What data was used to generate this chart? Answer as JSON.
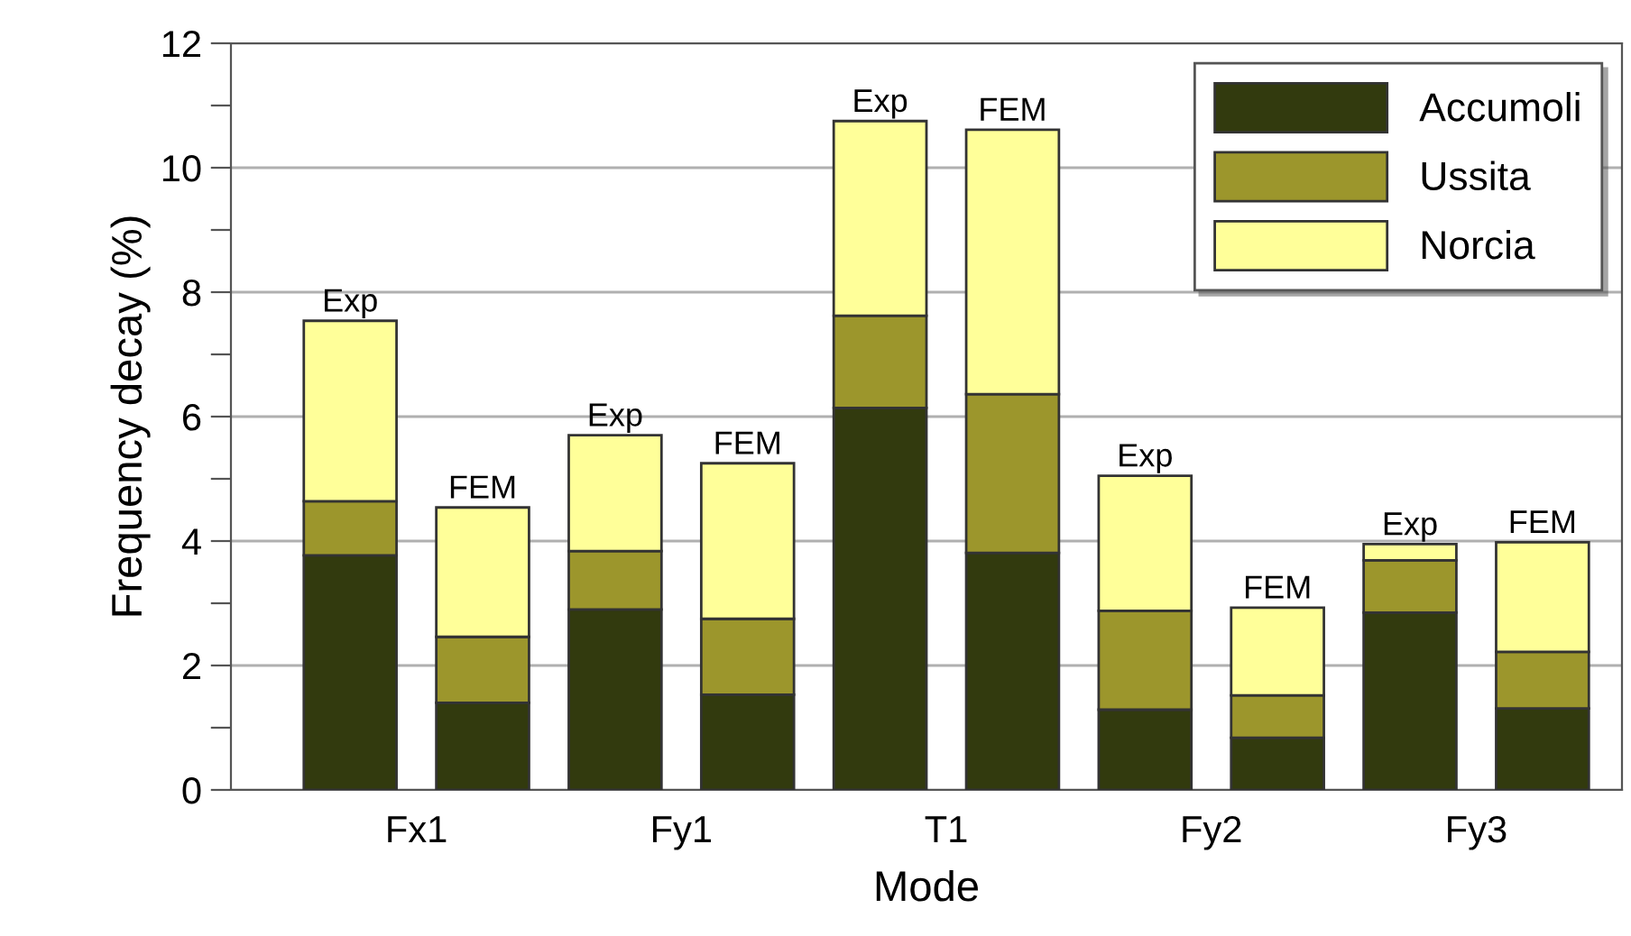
{
  "chart_data": {
    "type": "bar",
    "stacked": true,
    "xlabel": "Mode",
    "ylabel": "Frequency decay (%)",
    "categories": [
      "Exp",
      "FEM",
      "Exp",
      "FEM",
      "Exp",
      "FEM",
      "Exp",
      "FEM",
      "Exp",
      "FEM"
    ],
    "series": [
      {
        "name": "Accumoli",
        "color": "#323a0e",
        "values": [
          3.77,
          1.4,
          2.9,
          1.53,
          6.14,
          3.81,
          1.29,
          0.84,
          2.85,
          1.31
        ]
      },
      {
        "name": "Ussita",
        "color": "#9c962c",
        "values": [
          0.87,
          1.06,
          0.94,
          1.22,
          1.48,
          2.55,
          1.59,
          0.68,
          0.84,
          0.91
        ]
      },
      {
        "name": "Norcia",
        "color": "#ffff99",
        "values": [
          2.9,
          2.08,
          1.86,
          2.5,
          3.13,
          4.25,
          2.17,
          1.41,
          0.26,
          1.76
        ]
      }
    ],
    "annotations": [
      "Fx1",
      "Fy1",
      "T1",
      "Fy2",
      "Fy3"
    ],
    "ylim": [
      0,
      12
    ],
    "yticks": [
      0,
      {
        "value": 1,
        "label": null
      },
      2,
      {
        "value": 3,
        "label": null
      },
      4,
      {
        "value": 5,
        "label": null
      },
      6,
      {
        "value": 7,
        "label": null
      },
      8,
      {
        "value": 9,
        "label": null
      },
      10,
      {
        "value": 11,
        "label": null
      },
      12
    ],
    "grid": "y",
    "legend": "top right"
  }
}
